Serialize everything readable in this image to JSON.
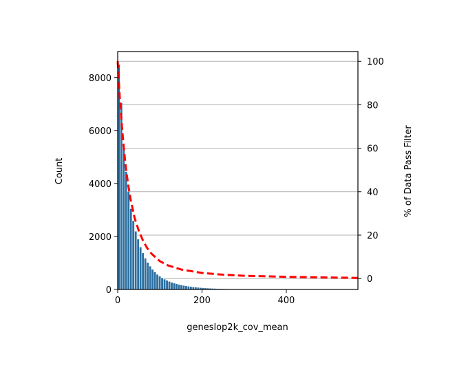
{
  "chart_data": {
    "type": "histogram+line",
    "xlabel": "geneslop2k_cov_mean",
    "ylabel_left": "Count",
    "ylabel_right": "% of Data Pass Filter",
    "xlim": [
      0,
      570
    ],
    "ylim_left": [
      0,
      8980
    ],
    "ylim_right": [
      -5,
      104.5
    ],
    "x_ticks": [
      0,
      200,
      400
    ],
    "y_ticks_left": [
      0,
      2000,
      4000,
      6000,
      8000
    ],
    "y_ticks_right": [
      0,
      20,
      40,
      60,
      80,
      100
    ],
    "grid": "right-axis horizontal",
    "colors": {
      "bars": "#2c6fa1",
      "bar_edge": "#ffffff",
      "pass_line": "#ff0000",
      "right_label": "#ff0000",
      "grid": "#b0b0b0"
    },
    "histogram": {
      "bin_width": 5.7,
      "counts": [
        8500,
        7050,
        5300,
        4450,
        3700,
        3050,
        2600,
        2200,
        1900,
        1600,
        1380,
        1180,
        1020,
        880,
        760,
        660,
        570,
        500,
        440,
        390,
        345,
        305,
        270,
        240,
        215,
        190,
        170,
        152,
        136,
        122,
        110,
        98,
        88,
        79,
        71,
        64,
        58,
        52,
        47,
        42,
        38,
        34,
        31,
        28,
        25,
        22,
        20,
        18,
        16,
        14,
        13,
        12,
        11,
        10,
        9,
        8,
        7,
        7,
        6,
        6
      ]
    },
    "series": [
      {
        "x": [
          0,
          5,
          10,
          15,
          20,
          25,
          30,
          40,
          50,
          60,
          70,
          80,
          100,
          120,
          150,
          200,
          250,
          300,
          400,
          500,
          570
        ],
        "values": [
          100,
          83,
          70,
          59,
          50,
          43,
          37,
          28,
          22,
          17.5,
          14,
          11.5,
          8,
          6,
          4.2,
          2.6,
          1.8,
          1.3,
          0.8,
          0.5,
          0.3
        ]
      }
    ]
  }
}
